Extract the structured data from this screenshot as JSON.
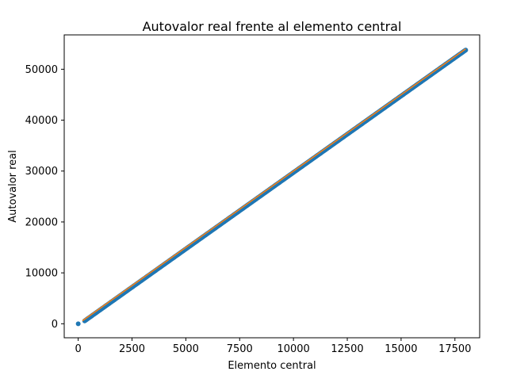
{
  "chart_data": {
    "type": "scatter",
    "title": "Autovalor real frente al elemento central",
    "xlabel": "Elemento central",
    "ylabel": "Autovalor real",
    "xlim": [
      -650,
      18650
    ],
    "ylim": [
      -2750,
      56750
    ],
    "x_ticks": [
      0,
      2500,
      5000,
      7500,
      10000,
      12500,
      15000,
      17500
    ],
    "y_ticks": [
      0,
      10000,
      20000,
      30000,
      40000,
      50000
    ],
    "grid": false,
    "series": [
      {
        "color": "#1f77b4",
        "marker": "dot",
        "points": [
          [
            0,
            0
          ],
          [
            300,
            800
          ],
          [
            18000,
            54000
          ]
        ]
      },
      {
        "color": "#ff7f0e",
        "marker": "line",
        "points": [
          [
            200,
            600
          ],
          [
            18000,
            54000
          ]
        ]
      }
    ]
  }
}
